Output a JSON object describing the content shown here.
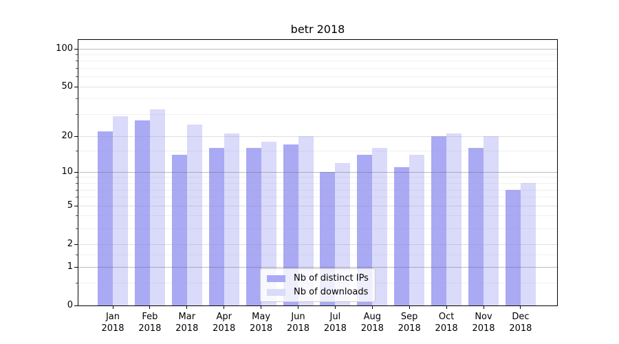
{
  "figure": {
    "title": "betr 2018"
  },
  "chart_data": {
    "type": "bar",
    "title": "betr 2018",
    "categories": [
      "Jan 2018",
      "Feb 2018",
      "Mar 2018",
      "Apr 2018",
      "May 2018",
      "Jun 2018",
      "Jul 2018",
      "Aug 2018",
      "Sep 2018",
      "Oct 2018",
      "Nov 2018",
      "Dec 2018"
    ],
    "series": [
      {
        "name": "Nb of distinct IPs",
        "color": "#a9a9f4",
        "values": [
          22,
          27,
          14,
          16,
          16,
          17,
          10,
          14,
          11,
          20,
          16,
          7
        ]
      },
      {
        "name": "Nb of downloads",
        "color": "#dadafa",
        "values": [
          29,
          33,
          25,
          21,
          18,
          20,
          12,
          16,
          14,
          21,
          20,
          8
        ]
      }
    ],
    "yscale": "log10(value+1)",
    "ylim": [
      0,
      117
    ],
    "y_ticks": [
      0,
      1,
      2,
      5,
      10,
      20,
      50,
      100
    ],
    "y_major_grid": [
      1,
      10,
      100
    ],
    "y_minor_ticks": [
      0.5,
      1.5,
      3,
      4,
      6,
      7,
      8,
      9,
      15,
      30,
      40,
      60,
      70,
      80,
      90
    ],
    "grid": true,
    "legend": {
      "position": "lower-center",
      "entries": [
        "Nb of distinct IPs",
        "Nb of downloads"
      ]
    }
  }
}
